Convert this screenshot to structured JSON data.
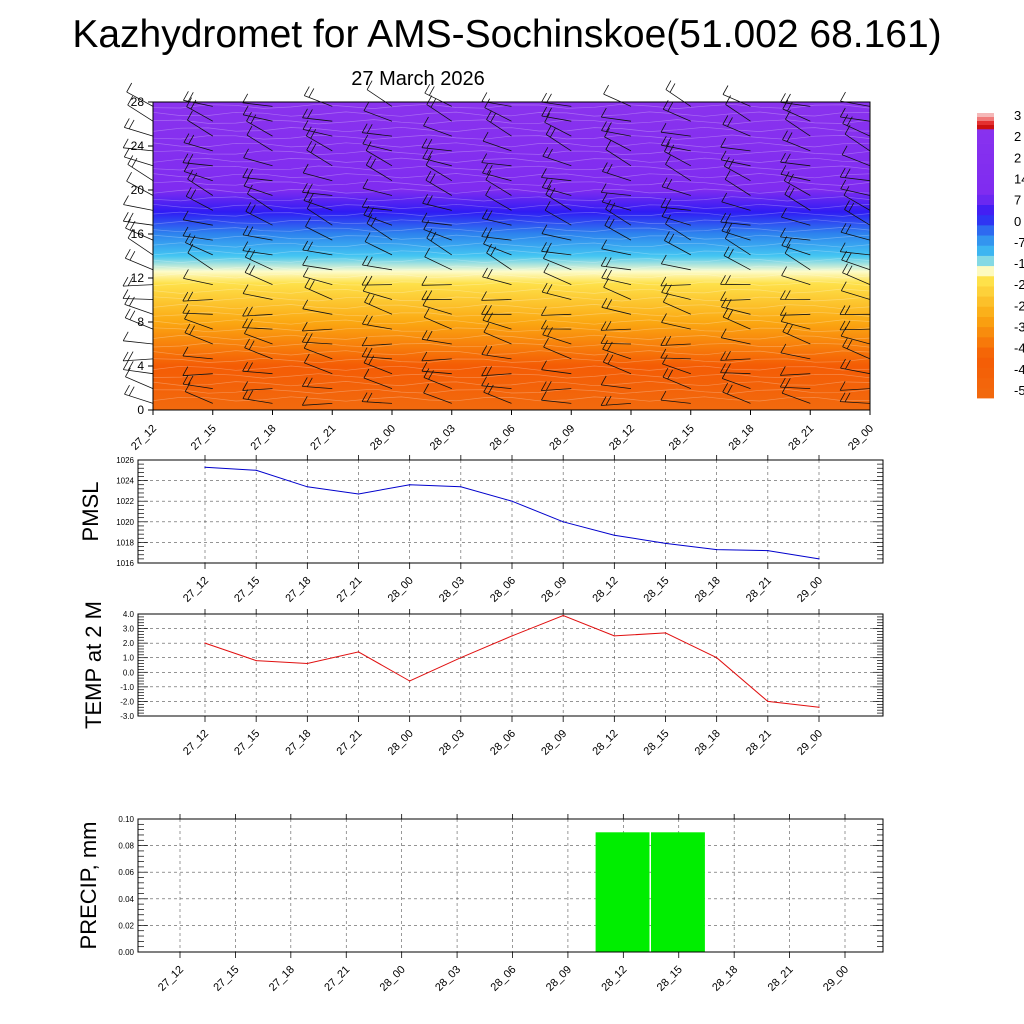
{
  "title": "Kazhydromet for AMS-Sochinskoe(51.002 68.161)",
  "subtitle": "27 March 2026",
  "time_labels": [
    "27_12",
    "27_15",
    "27_18",
    "27_21",
    "28_00",
    "28_03",
    "28_06",
    "28_09",
    "28_12",
    "28_15",
    "28_18",
    "28_21",
    "29_00"
  ],
  "chart_data": [
    {
      "type": "heatmap",
      "name": "cross-section",
      "ylim": [
        0,
        28
      ],
      "yticks": [
        0,
        4,
        8,
        12,
        16,
        20,
        24,
        28
      ],
      "colorbar_labels": [
        "3",
        "2",
        "2",
        "14",
        "7",
        "0",
        "-7",
        "-1",
        "-2",
        "-2",
        "-3",
        "-4",
        "-4",
        "-5"
      ],
      "palette_stops": [
        {
          "level": 0,
          "color": "#f26a0e"
        },
        {
          "level": 4,
          "color": "#f45c05"
        },
        {
          "level": 8,
          "color": "#fba812"
        },
        {
          "level": 11.5,
          "color": "#fee14a"
        },
        {
          "level": 12.6,
          "color": "#fdfccc"
        },
        {
          "level": 14,
          "color": "#43c6f2"
        },
        {
          "level": 16,
          "color": "#2d84ee"
        },
        {
          "level": 18,
          "color": "#2f1bf4"
        },
        {
          "level": 20,
          "color": "#7f2cf0"
        },
        {
          "level": 28,
          "color": "#8a33ee"
        }
      ]
    },
    {
      "type": "line",
      "name": "PMSL",
      "ylabel": "PMSL",
      "ylim": [
        1016,
        1026
      ],
      "yticks": [
        "1016",
        "1018",
        "1020",
        "1022",
        "1024",
        "1026"
      ],
      "color": "#0000cc",
      "values": [
        1025.3,
        1025.0,
        1023.4,
        1022.7,
        1023.6,
        1023.4,
        1022.0,
        1020.0,
        1018.7,
        1017.9,
        1017.3,
        1017.2,
        1016.4
      ]
    },
    {
      "type": "line",
      "name": "TEMP at 2 M",
      "ylabel": "TEMP at 2 M",
      "ylim": [
        -3,
        4
      ],
      "yticks": [
        "-3.0",
        "-2.0",
        "-1.0",
        "0.0",
        "1.0",
        "2.0",
        "3.0",
        "4.0"
      ],
      "color": "#e01010",
      "values": [
        2.0,
        0.8,
        0.6,
        1.4,
        -0.6,
        1.0,
        2.5,
        3.9,
        2.5,
        2.7,
        1.0,
        -2.0,
        -2.4
      ]
    },
    {
      "type": "bar",
      "name": "PRECIP, mm",
      "ylabel": "PRECIP, mm",
      "ylim": [
        0,
        0.1
      ],
      "yticks": [
        "0.00",
        "0.02",
        "0.04",
        "0.06",
        "0.08",
        "0.10"
      ],
      "color": "#00ee00",
      "values": [
        0,
        0,
        0,
        0,
        0,
        0,
        0,
        0,
        0.09,
        0.09,
        0,
        0,
        0
      ]
    }
  ]
}
